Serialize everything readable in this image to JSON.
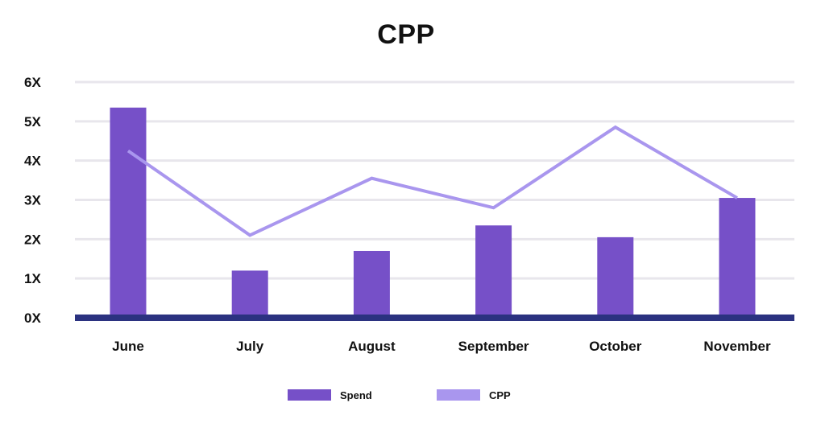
{
  "chart_data": {
    "type": "bar",
    "title": "CPP",
    "categories": [
      "June",
      "July",
      "August",
      "September",
      "October",
      "November"
    ],
    "y_ticks": [
      "0X",
      "1X",
      "2X",
      "3X",
      "4X",
      "5X",
      "6X"
    ],
    "ylim": [
      0,
      6
    ],
    "grid": true,
    "legend_position": "bottom",
    "series": [
      {
        "name": "Spend",
        "type": "bar",
        "color": "#7650C8",
        "values": [
          5.35,
          1.2,
          1.7,
          2.35,
          2.05,
          3.05
        ]
      },
      {
        "name": "CPP",
        "type": "line",
        "color": "#A996EE",
        "values": [
          4.25,
          2.1,
          3.55,
          2.8,
          4.85,
          3.05
        ]
      }
    ],
    "axis_color": "#2B3280",
    "grid_color": "#E8E6EC"
  }
}
